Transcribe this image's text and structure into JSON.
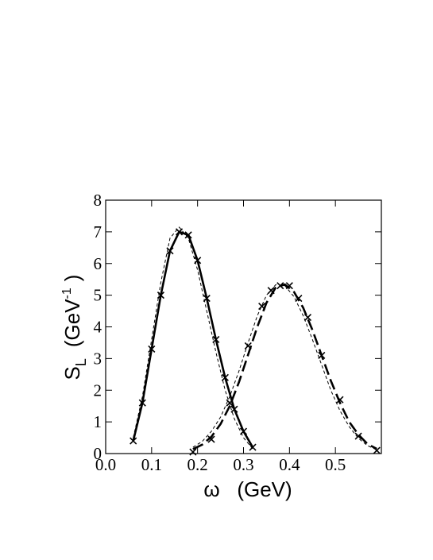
{
  "chart_data": {
    "type": "line",
    "xlabel": "ω   (GeV)",
    "ylabel": {
      "main": "S",
      "sub": "L",
      "unit": "(GeV",
      "sup": "-1",
      "close": ")"
    },
    "xlim": [
      0,
      0.6
    ],
    "ylim": [
      0,
      8
    ],
    "xticks": [
      {
        "value": 0,
        "label": "0.0"
      },
      0.1,
      0.2,
      0.3,
      0.4,
      0.5
    ],
    "yticks": [
      0,
      1,
      2,
      3,
      4,
      5,
      6,
      7,
      8
    ],
    "series": [
      {
        "color": "#000000",
        "style": "solid",
        "width": 2.6,
        "x": [
          0.06,
          0.08,
          0.1,
          0.12,
          0.14,
          0.16,
          0.18,
          0.2,
          0.22,
          0.24,
          0.26,
          0.28,
          0.3,
          0.32
        ],
        "values": [
          0.4,
          1.6,
          3.3,
          5.0,
          6.4,
          7.0,
          6.9,
          6.1,
          4.9,
          3.6,
          2.4,
          1.4,
          0.7,
          0.2
        ]
      },
      {
        "color": "#000000",
        "style": "thin-dashed",
        "width": 1,
        "x": [
          0.06,
          0.08,
          0.1,
          0.12,
          0.14,
          0.16,
          0.18,
          0.2,
          0.22,
          0.24,
          0.26,
          0.28,
          0.3,
          0.32
        ],
        "values": [
          0.5,
          1.8,
          3.6,
          5.4,
          6.8,
          7.15,
          6.8,
          5.8,
          4.5,
          3.2,
          2.0,
          1.1,
          0.5,
          0.15
        ]
      },
      {
        "color": "#000000",
        "style": "markers",
        "marker": "x",
        "x": [
          0.06,
          0.08,
          0.1,
          0.12,
          0.14,
          0.16,
          0.18,
          0.2,
          0.22,
          0.24,
          0.26,
          0.28,
          0.3,
          0.32
        ],
        "values": [
          0.4,
          1.6,
          3.3,
          5.0,
          6.4,
          7.0,
          6.9,
          6.1,
          4.9,
          3.6,
          2.4,
          1.4,
          0.7,
          0.2
        ]
      },
      {
        "color": "#000000",
        "style": "dashed",
        "width": 2.6,
        "x": [
          0.19,
          0.21,
          0.23,
          0.25,
          0.27,
          0.29,
          0.31,
          0.33,
          0.35,
          0.37,
          0.39,
          0.41,
          0.43,
          0.45,
          0.47,
          0.49,
          0.51,
          0.53,
          0.55,
          0.57,
          0.59
        ],
        "values": [
          0.14,
          0.28,
          0.53,
          0.93,
          1.5,
          2.25,
          3.12,
          4.0,
          4.76,
          5.24,
          5.34,
          5.1,
          4.6,
          3.9,
          3.1,
          2.3,
          1.6,
          1.0,
          0.6,
          0.3,
          0.15
        ]
      },
      {
        "color": "#000000",
        "style": "thin-dashed",
        "width": 1,
        "x": [
          0.19,
          0.21,
          0.23,
          0.25,
          0.27,
          0.29,
          0.31,
          0.33,
          0.35,
          0.37,
          0.39,
          0.41,
          0.43,
          0.45,
          0.47,
          0.49,
          0.51,
          0.53,
          0.55,
          0.57,
          0.59
        ],
        "values": [
          0.2,
          0.38,
          0.7,
          1.15,
          1.8,
          2.6,
          3.5,
          4.35,
          5.0,
          5.33,
          5.3,
          4.95,
          4.35,
          3.6,
          2.8,
          2.0,
          1.35,
          0.85,
          0.48,
          0.25,
          0.12
        ]
      },
      {
        "color": "#000000",
        "style": "markers",
        "marker": "x",
        "x": [
          0.19,
          0.23,
          0.27,
          0.31,
          0.34,
          0.36,
          0.38,
          0.4,
          0.42,
          0.44,
          0.47,
          0.51,
          0.55,
          0.59
        ],
        "values": [
          0.05,
          0.45,
          1.6,
          3.4,
          4.65,
          5.15,
          5.3,
          5.3,
          4.9,
          4.3,
          3.1,
          1.7,
          0.55,
          0.1
        ]
      }
    ]
  }
}
